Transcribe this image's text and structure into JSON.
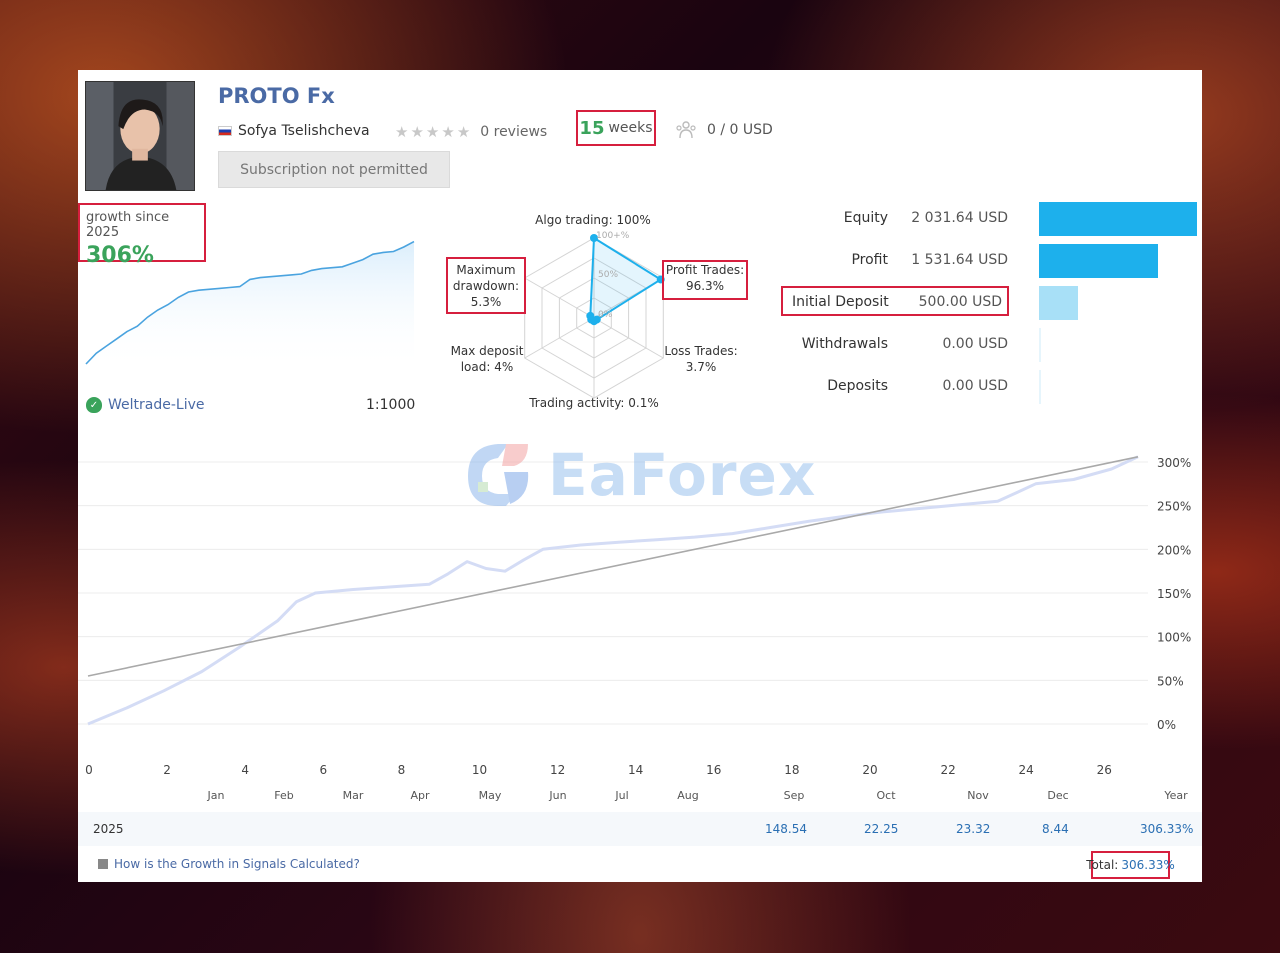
{
  "header": {
    "title": "PROTO Fx",
    "author": "Sofya Tselishcheva",
    "reviews": "0 reviews",
    "weeks_num": "15",
    "weeks_label": "weeks",
    "subscribers": "0 / 0 USD",
    "subscribe_button": "Subscription not permitted"
  },
  "growth": {
    "label": "growth since 2025",
    "value": "306%",
    "broker": "Weltrade-Live",
    "leverage": "1:1000",
    "mini_series": [
      0,
      6,
      10,
      14,
      18,
      21,
      26,
      30,
      33,
      37,
      40,
      41,
      41.5,
      42,
      42.5,
      43,
      47,
      48,
      48.5,
      49,
      49.5,
      50,
      52,
      53,
      53.5,
      54,
      56,
      58,
      61,
      62,
      62.5,
      65,
      68
    ]
  },
  "radar": {
    "algo_trading": "Algo trading: 100%",
    "ring_100": "100+%",
    "ring_50": "50%",
    "ring_0": "0%",
    "profit_trades_label": "Profit Trades:",
    "profit_trades_value": "96.3%",
    "loss_trades_label": "Loss Trades:",
    "loss_trades_value": "3.7%",
    "trading_activity": "Trading activity: 0.1%",
    "max_deposit_label": "Max deposit",
    "max_deposit_value": "load: 4%",
    "max_drawdown_1": "Maximum",
    "max_drawdown_2": "drawdown:",
    "max_drawdown_value": "5.3%",
    "values": {
      "algo": 100,
      "profit": 96.3,
      "loss": 3.7,
      "activity": 0.1,
      "deposit_load": 4,
      "drawdown": 5.3
    }
  },
  "stats": [
    {
      "label": "Equity",
      "value": "2 031.64 USD",
      "bar": 1.0,
      "color": "#1db0ec"
    },
    {
      "label": "Profit",
      "value": "1 531.64 USD",
      "bar": 0.754,
      "color": "#1db0ec"
    },
    {
      "label": "Initial Deposit",
      "value": "500.00 USD",
      "bar": 0.246,
      "color": "#a8e0f7"
    },
    {
      "label": "Withdrawals",
      "value": "0.00 USD",
      "bar": 0,
      "color": "#a8e0f7"
    },
    {
      "label": "Deposits",
      "value": "0.00 USD",
      "bar": 0,
      "color": "#a8e0f7"
    }
  ],
  "watermark": "EaForex",
  "chart_data": {
    "type": "line",
    "x_ticks": [
      "0",
      "2",
      "4",
      "6",
      "8",
      "10",
      "12",
      "14",
      "16",
      "18",
      "20",
      "22",
      "24",
      "26"
    ],
    "month_labels": [
      "Jan",
      "Feb",
      "Mar",
      "Apr",
      "May",
      "Jun",
      "Jul",
      "Aug",
      "Sep",
      "Oct",
      "Nov",
      "Dec",
      "Year"
    ],
    "y_ticks": [
      "300%",
      "250%",
      "200%",
      "150%",
      "100%",
      "50%",
      "0%"
    ],
    "ylim": [
      -30,
      310
    ],
    "xlim": [
      0,
      27.7
    ],
    "series": [
      {
        "x": [
          0,
          1,
          2,
          3,
          4,
          5,
          5.5,
          6,
          7,
          8,
          9,
          9.5,
          10,
          10.5,
          11,
          11.5,
          12,
          13,
          14,
          15,
          16,
          17,
          18,
          19,
          20,
          21,
          22,
          23,
          24,
          24.5,
          25,
          26,
          27,
          27.7
        ],
        "y": [
          0,
          18,
          38,
          60,
          88,
          118,
          140,
          150,
          154,
          157,
          160,
          172,
          186,
          178,
          175,
          188,
          200,
          205,
          208,
          211,
          214,
          218,
          225,
          232,
          238,
          243,
          247,
          251,
          255,
          265,
          275,
          280,
          292,
          306
        ]
      },
      {
        "x": [
          0,
          27.7
        ],
        "y": [
          55,
          306
        ]
      }
    ],
    "year": "2025",
    "year_values": [
      "148.54",
      "22.25",
      "23.32",
      "8.44",
      "306.33%"
    ],
    "total_label": "Total:",
    "total_value": "306.33%",
    "footer_link": "How is the Growth in Signals Calculated?"
  }
}
